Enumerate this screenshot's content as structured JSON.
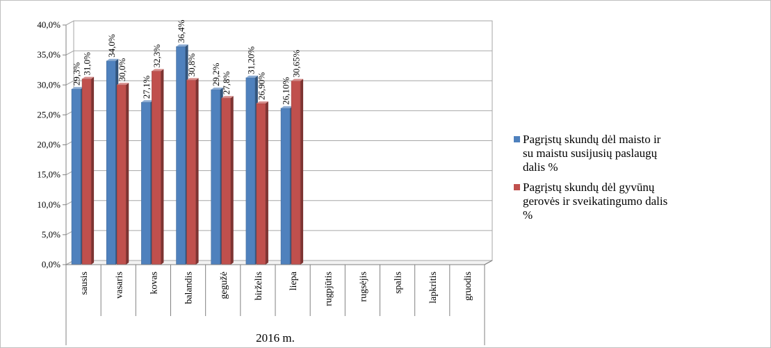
{
  "chart_data": {
    "type": "bar",
    "title": "",
    "xlabel": "",
    "ylabel": "",
    "group_label": "2016 m.",
    "categories": [
      "sausis",
      "vasaris",
      "kovas",
      "balandis",
      "gegužė",
      "birželis",
      "liepa",
      "rugpjūtis",
      "rugsėjis",
      "spalis",
      "lapkritis",
      "gruodis"
    ],
    "ylim": [
      0,
      40
    ],
    "y_ticks": [
      0,
      5,
      10,
      15,
      20,
      25,
      30,
      35,
      40
    ],
    "y_tick_labels": [
      "0,0%",
      "5,0%",
      "10,0%",
      "15,0%",
      "20,0%",
      "25,0%",
      "30,0%",
      "35,0%",
      "40,0%"
    ],
    "grid": true,
    "style": "3d-clustered-column",
    "legend_position": "right",
    "series": [
      {
        "name": "Pagrįstų skundų dėl maisto ir su maistu susijusių paslaugų dalis %",
        "legend_lines": [
          "Pagrįstų skundų dėl maisto ir",
          "su maistu susijusių paslaugų",
          "dalis %"
        ],
        "color": "#4f81bd",
        "values": [
          29.3,
          34.0,
          27.1,
          36.4,
          29.2,
          31.2,
          26.1,
          null,
          null,
          null,
          null,
          null
        ],
        "data_labels": [
          "29,3%",
          "34,0%",
          "27,1%",
          "36,4%",
          "29,2%",
          "31,20%",
          "26,10%",
          null,
          null,
          null,
          null,
          null
        ]
      },
      {
        "name": "Pagrįstų skundų dėl gyvūnų gerovės ir sveikatingumo dalis %",
        "legend_lines": [
          "Pagrįstų skundų dėl gyvūnų",
          "gerovės ir sveikatingumo dalis",
          "%"
        ],
        "color": "#c0504d",
        "values": [
          31.0,
          30.0,
          32.3,
          30.8,
          27.8,
          26.9,
          30.65,
          null,
          null,
          null,
          null,
          null
        ],
        "data_labels": [
          "31,0%",
          "30,0%",
          "32,3%",
          "30,8%",
          "27,8%",
          "26,90%",
          "30,65%",
          null,
          null,
          null,
          null,
          null
        ]
      }
    ]
  }
}
